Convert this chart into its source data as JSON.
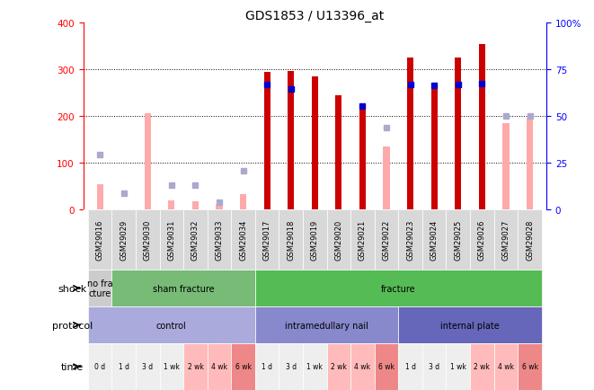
{
  "title": "GDS1853 / U13396_at",
  "samples": [
    "GSM29016",
    "GSM29029",
    "GSM29030",
    "GSM29031",
    "GSM29032",
    "GSM29033",
    "GSM29034",
    "GSM29017",
    "GSM29018",
    "GSM29019",
    "GSM29020",
    "GSM29021",
    "GSM29022",
    "GSM29023",
    "GSM29024",
    "GSM29025",
    "GSM29026",
    "GSM29027",
    "GSM29028"
  ],
  "count_values": [
    0,
    0,
    0,
    0,
    0,
    0,
    0,
    295,
    297,
    285,
    244,
    220,
    0,
    325,
    265,
    325,
    355,
    0,
    0
  ],
  "rank_values": [
    0,
    0,
    0,
    0,
    0,
    0,
    0,
    268,
    258,
    0,
    0,
    222,
    0,
    268,
    265,
    268,
    270,
    0,
    0
  ],
  "count_absent": [
    55,
    0,
    207,
    20,
    17,
    10,
    33,
    0,
    0,
    0,
    0,
    0,
    135,
    0,
    0,
    0,
    0,
    185,
    197
  ],
  "rank_absent": [
    118,
    35,
    0,
    52,
    52,
    15,
    83,
    0,
    0,
    0,
    0,
    0,
    175,
    0,
    0,
    0,
    0,
    200,
    200
  ],
  "ylim": [
    0,
    400
  ],
  "y2lim": [
    0,
    100
  ],
  "yticks": [
    0,
    100,
    200,
    300,
    400
  ],
  "y2ticks": [
    0,
    25,
    50,
    75,
    100
  ],
  "shock_groups": [
    {
      "label": "no fra\ncture",
      "start": 0,
      "end": 1,
      "color": "#cccccc"
    },
    {
      "label": "sham fracture",
      "start": 1,
      "end": 7,
      "color": "#77bb77"
    },
    {
      "label": "fracture",
      "start": 7,
      "end": 19,
      "color": "#55bb55"
    }
  ],
  "protocol_groups": [
    {
      "label": "control",
      "start": 0,
      "end": 7,
      "color": "#aaaadd"
    },
    {
      "label": "intramedullary nail",
      "start": 7,
      "end": 13,
      "color": "#8888cc"
    },
    {
      "label": "internal plate",
      "start": 13,
      "end": 19,
      "color": "#6666bb"
    }
  ],
  "time_labels": [
    "0 d",
    "1 d",
    "3 d",
    "1 wk",
    "2 wk",
    "4 wk",
    "6 wk",
    "1 d",
    "3 d",
    "1 wk",
    "2 wk",
    "4 wk",
    "6 wk",
    "1 d",
    "3 d",
    "1 wk",
    "2 wk",
    "4 wk",
    "6 wk"
  ],
  "time_colors": [
    "#eeeeee",
    "#eeeeee",
    "#eeeeee",
    "#eeeeee",
    "#ffbbbb",
    "#ffbbbb",
    "#ee8888",
    "#eeeeee",
    "#eeeeee",
    "#eeeeee",
    "#ffbbbb",
    "#ffbbbb",
    "#ee8888",
    "#eeeeee",
    "#eeeeee",
    "#eeeeee",
    "#ffbbbb",
    "#ffbbbb",
    "#ee8888"
  ],
  "count_color": "#cc0000",
  "rank_color": "#0000cc",
  "count_absent_color": "#ffaaaa",
  "rank_absent_color": "#aaaacc",
  "bar_width": 0.45,
  "marker_size": 5,
  "label_left": "shock",
  "label_left2": "protocol",
  "label_left3": "time"
}
